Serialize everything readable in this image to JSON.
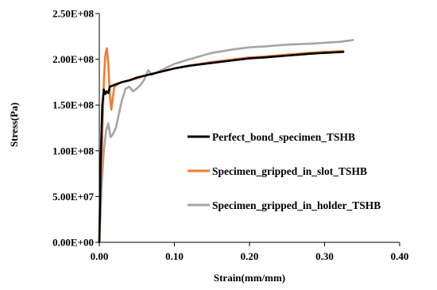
{
  "chart_data": {
    "type": "line",
    "xlabel": "Strain(mm/mm)",
    "ylabel": "Stress(Pa)",
    "xlim": [
      0,
      0.4
    ],
    "ylim": [
      0,
      250000000
    ],
    "x_ticks": [
      "0.00",
      "0.10",
      "0.20",
      "0.30",
      "0.40"
    ],
    "y_ticks": [
      "0.00E+00",
      "5.00E+07",
      "1.00E+08",
      "1.50E+08",
      "2.00E+08",
      "2.50E+08"
    ],
    "grid": false,
    "legend_position": "right",
    "series": [
      {
        "name": "Perfect_bond_specimen_TSHB",
        "color": "#000000",
        "points": [
          [
            0,
            0
          ],
          [
            0.002,
            95000000
          ],
          [
            0.004,
            150000000
          ],
          [
            0.006,
            167000000
          ],
          [
            0.008,
            162000000
          ],
          [
            0.01,
            165000000
          ],
          [
            0.012,
            163000000
          ],
          [
            0.014,
            170000000
          ],
          [
            0.02,
            172000000
          ],
          [
            0.03,
            175000000
          ],
          [
            0.04,
            177000000
          ],
          [
            0.05,
            180000000
          ],
          [
            0.06,
            182000000
          ],
          [
            0.08,
            186000000
          ],
          [
            0.1,
            190000000
          ],
          [
            0.12,
            193000000
          ],
          [
            0.15,
            196000000
          ],
          [
            0.18,
            199000000
          ],
          [
            0.2,
            201000000
          ],
          [
            0.22,
            202000000
          ],
          [
            0.25,
            204000000
          ],
          [
            0.28,
            206000000
          ],
          [
            0.3,
            207000000
          ],
          [
            0.325,
            208000000
          ]
        ]
      },
      {
        "name": "Specimen_gripped_in_slot_TSHB",
        "color": "#ED7D31",
        "points": [
          [
            0,
            0
          ],
          [
            0.002,
            60000000
          ],
          [
            0.004,
            120000000
          ],
          [
            0.006,
            175000000
          ],
          [
            0.008,
            205000000
          ],
          [
            0.01,
            212000000
          ],
          [
            0.012,
            195000000
          ],
          [
            0.014,
            160000000
          ],
          [
            0.016,
            145000000
          ],
          [
            0.018,
            158000000
          ],
          [
            0.02,
            170000000
          ],
          [
            0.025,
            173000000
          ],
          [
            0.03,
            175000000
          ],
          [
            0.04,
            177000000
          ],
          [
            0.05,
            179000000
          ],
          [
            0.06,
            182000000
          ],
          [
            0.08,
            186000000
          ],
          [
            0.1,
            190000000
          ],
          [
            0.12,
            193000000
          ],
          [
            0.15,
            197000000
          ],
          [
            0.18,
            200000000
          ],
          [
            0.2,
            202000000
          ],
          [
            0.22,
            203000000
          ],
          [
            0.25,
            205000000
          ],
          [
            0.28,
            207000000
          ],
          [
            0.3,
            208000000
          ],
          [
            0.325,
            209000000
          ]
        ]
      },
      {
        "name": "Specimen_gripped_in_holder_TSHB",
        "color": "#A5A5A5",
        "points": [
          [
            0,
            0
          ],
          [
            0.003,
            60000000
          ],
          [
            0.006,
            100000000
          ],
          [
            0.009,
            122000000
          ],
          [
            0.012,
            130000000
          ],
          [
            0.015,
            115000000
          ],
          [
            0.018,
            118000000
          ],
          [
            0.022,
            125000000
          ],
          [
            0.026,
            140000000
          ],
          [
            0.03,
            155000000
          ],
          [
            0.035,
            168000000
          ],
          [
            0.04,
            170000000
          ],
          [
            0.045,
            165000000
          ],
          [
            0.05,
            168000000
          ],
          [
            0.055,
            172000000
          ],
          [
            0.06,
            178000000
          ],
          [
            0.065,
            188000000
          ],
          [
            0.07,
            183000000
          ],
          [
            0.08,
            187000000
          ],
          [
            0.1,
            195000000
          ],
          [
            0.12,
            200000000
          ],
          [
            0.15,
            207000000
          ],
          [
            0.18,
            211000000
          ],
          [
            0.2,
            213000000
          ],
          [
            0.22,
            214000000
          ],
          [
            0.25,
            216000000
          ],
          [
            0.28,
            217000000
          ],
          [
            0.3,
            218000000
          ],
          [
            0.32,
            219000000
          ],
          [
            0.338,
            221000000
          ]
        ]
      }
    ]
  }
}
